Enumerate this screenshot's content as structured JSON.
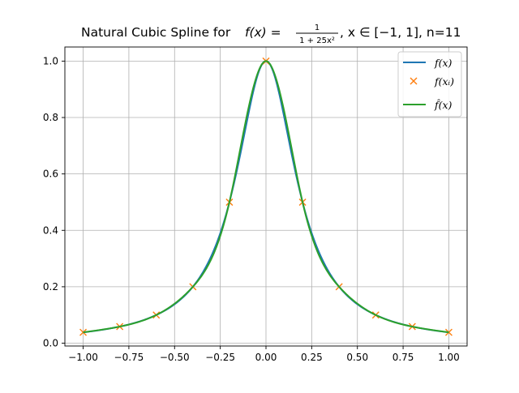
{
  "chart_data": {
    "type": "line",
    "title": "Natural Cubic Spline for f(x) = 1/(1+25x²), x ∈ [−1, 1], n=11",
    "title_parts": {
      "prefix": "Natural Cubic Spline for ",
      "fx": "f(x) =",
      "numerator": "1",
      "denominator": "1 + 25x²",
      "domain": ", x ∈ [−1, 1], n=11"
    },
    "xlabel": "",
    "ylabel": "",
    "xlim": [
      -1.1,
      1.1
    ],
    "ylim": [
      -0.01,
      1.05
    ],
    "grid": true,
    "legend_position": "upper-right",
    "x_ticks": [
      -1.0,
      -0.75,
      -0.5,
      -0.25,
      0.0,
      0.25,
      0.5,
      0.75,
      1.0
    ],
    "x_tick_labels": [
      "−1.00",
      "−0.75",
      "−0.50",
      "−0.25",
      "0.00",
      "0.25",
      "0.50",
      "0.75",
      "1.00"
    ],
    "y_ticks": [
      0.0,
      0.2,
      0.4,
      0.6,
      0.8,
      1.0
    ],
    "y_tick_labels": [
      "0.0",
      "0.2",
      "0.4",
      "0.6",
      "0.8",
      "1.0"
    ],
    "series": [
      {
        "name": "f(x)",
        "kind": "line",
        "color": "#1f77b4",
        "function": "1/(1+25x^2)",
        "domain": [
          -1,
          1
        ]
      },
      {
        "name": "f(xᵢ)",
        "kind": "markers",
        "marker": "x",
        "color": "#ff7f0e",
        "x": [
          -1.0,
          -0.8,
          -0.6,
          -0.4,
          -0.2,
          0.0,
          0.2,
          0.4,
          0.6,
          0.8,
          1.0
        ],
        "y": [
          0.0385,
          0.0588,
          0.1,
          0.2,
          0.5,
          1.0,
          0.5,
          0.2,
          0.1,
          0.0588,
          0.0385
        ]
      },
      {
        "name": "f̂(x)",
        "kind": "line",
        "color": "#2ca02c",
        "interpolation": "natural cubic spline",
        "knots_x": [
          -1.0,
          -0.8,
          -0.6,
          -0.4,
          -0.2,
          0.0,
          0.2,
          0.4,
          0.6,
          0.8,
          1.0
        ],
        "knots_y": [
          0.0385,
          0.0588,
          0.1,
          0.2,
          0.5,
          1.0,
          0.5,
          0.2,
          0.1,
          0.0588,
          0.0385
        ]
      }
    ]
  }
}
